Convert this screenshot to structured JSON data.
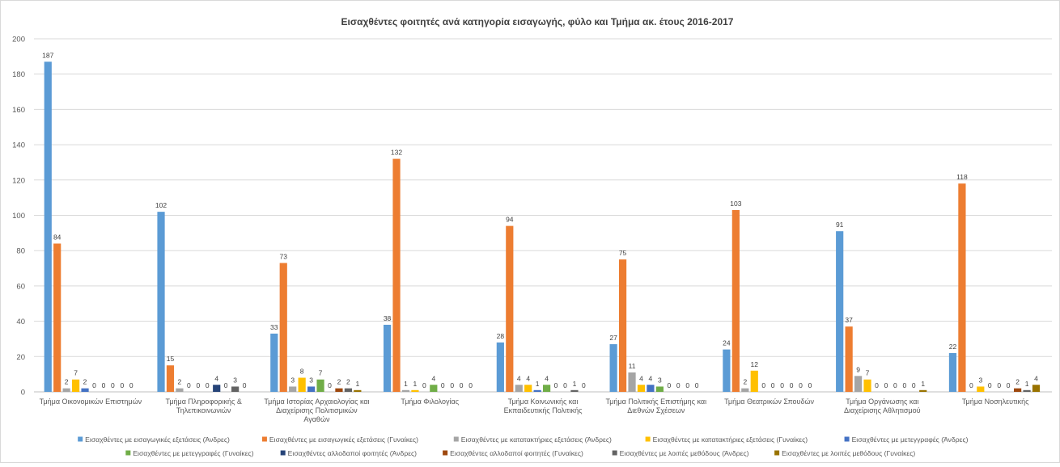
{
  "chart_data": {
    "type": "bar",
    "title": "Εισαχθέντες φοιτητές ανά κατηγορία εισαγωγής, φύλο και Τμήμα ακ. έτους 2016-2017",
    "xlabel": "",
    "ylabel": "",
    "ylim": [
      0,
      200
    ],
    "yticks": [
      0,
      20,
      40,
      60,
      80,
      100,
      120,
      140,
      160,
      180,
      200
    ],
    "grid": true,
    "legend_position": "bottom",
    "categories": [
      [
        "Τμήμα Οικονομικών Επιστημών"
      ],
      [
        "Τμήμα Πληροφορικής &",
        "Τηλεπικοινωνιών"
      ],
      [
        "Τμήμα Ιστορίας Αρχαιολογίας και",
        "Διαχείρισης Πολιτισμικών",
        "Αγαθών"
      ],
      [
        "Τμήμα Φιλολογίας"
      ],
      [
        "Τμήμα Κοινωνικής και",
        "Εκπαιδευτικής Πολιτικής"
      ],
      [
        "Τμήμα Πολιτικής Επιστήμης και",
        "Διεθνών Σχέσεων"
      ],
      [
        "Τμήμα Θεατρικών Σπουδών"
      ],
      [
        "Τμήμα Οργάνωσης και",
        "Διαχείρισης Αθλητισμού"
      ],
      [
        "Τμήμα Νοσηλευτικής"
      ]
    ],
    "series": [
      {
        "name": "Εισαχθέντες με εισαγωγικές εξετάσεις (Άνδρες)",
        "color": "#5B9BD5",
        "values": [
          187,
          102,
          33,
          38,
          28,
          27,
          24,
          91,
          22
        ]
      },
      {
        "name": "Εισαχθέντες με εισαγωγικές εξετάσεις (Γυναίκες)",
        "color": "#ED7D31",
        "values": [
          84,
          15,
          73,
          132,
          94,
          75,
          103,
          37,
          118
        ]
      },
      {
        "name": "Εισαχθέντες με κατατακτήριες εξετάσεις (Άνδρες)",
        "color": "#A5A5A5",
        "values": [
          2,
          2,
          3,
          1,
          4,
          11,
          2,
          9,
          0
        ]
      },
      {
        "name": "Εισαχθέντες με κατατακτήριες εξετάσεις (Γυναίκες)",
        "color": "#FFC000",
        "values": [
          7,
          0,
          8,
          1,
          4,
          4,
          12,
          7,
          3
        ]
      },
      {
        "name": "Εισαχθέντες με μετεγγραφές (Άνδρες)",
        "color": "#4472C4",
        "values": [
          2,
          0,
          3,
          0,
          1,
          4,
          0,
          0,
          0
        ]
      },
      {
        "name": "Εισαχθέντες με μετεγγραφές (Γυναίκες)",
        "color": "#70AD47",
        "values": [
          0,
          0,
          7,
          4,
          4,
          3,
          0,
          0,
          0
        ]
      },
      {
        "name": "Εισαχθέντες αλλοδαποί φοιτητές (Άνδρες)",
        "color": "#264478",
        "values": [
          0,
          4,
          0,
          0,
          0,
          0,
          0,
          0,
          0
        ]
      },
      {
        "name": "Εισαχθέντες αλλοδαποί φοιτητές (Γυναίκες)",
        "color": "#9E480E",
        "values": [
          0,
          0,
          2,
          0,
          0,
          0,
          0,
          0,
          2
        ]
      },
      {
        "name": "Εισαχθέντες με λοιπές μεθόδους (Άνδρες)",
        "color": "#636363",
        "values": [
          0,
          3,
          2,
          0,
          1,
          0,
          0,
          0,
          1
        ]
      },
      {
        "name": "Εισαχθέντες με λοιπές μεθόδους (Γυναίκες)",
        "color": "#997300",
        "values": [
          0,
          0,
          1,
          0,
          0,
          0,
          0,
          1,
          4
        ]
      }
    ]
  }
}
